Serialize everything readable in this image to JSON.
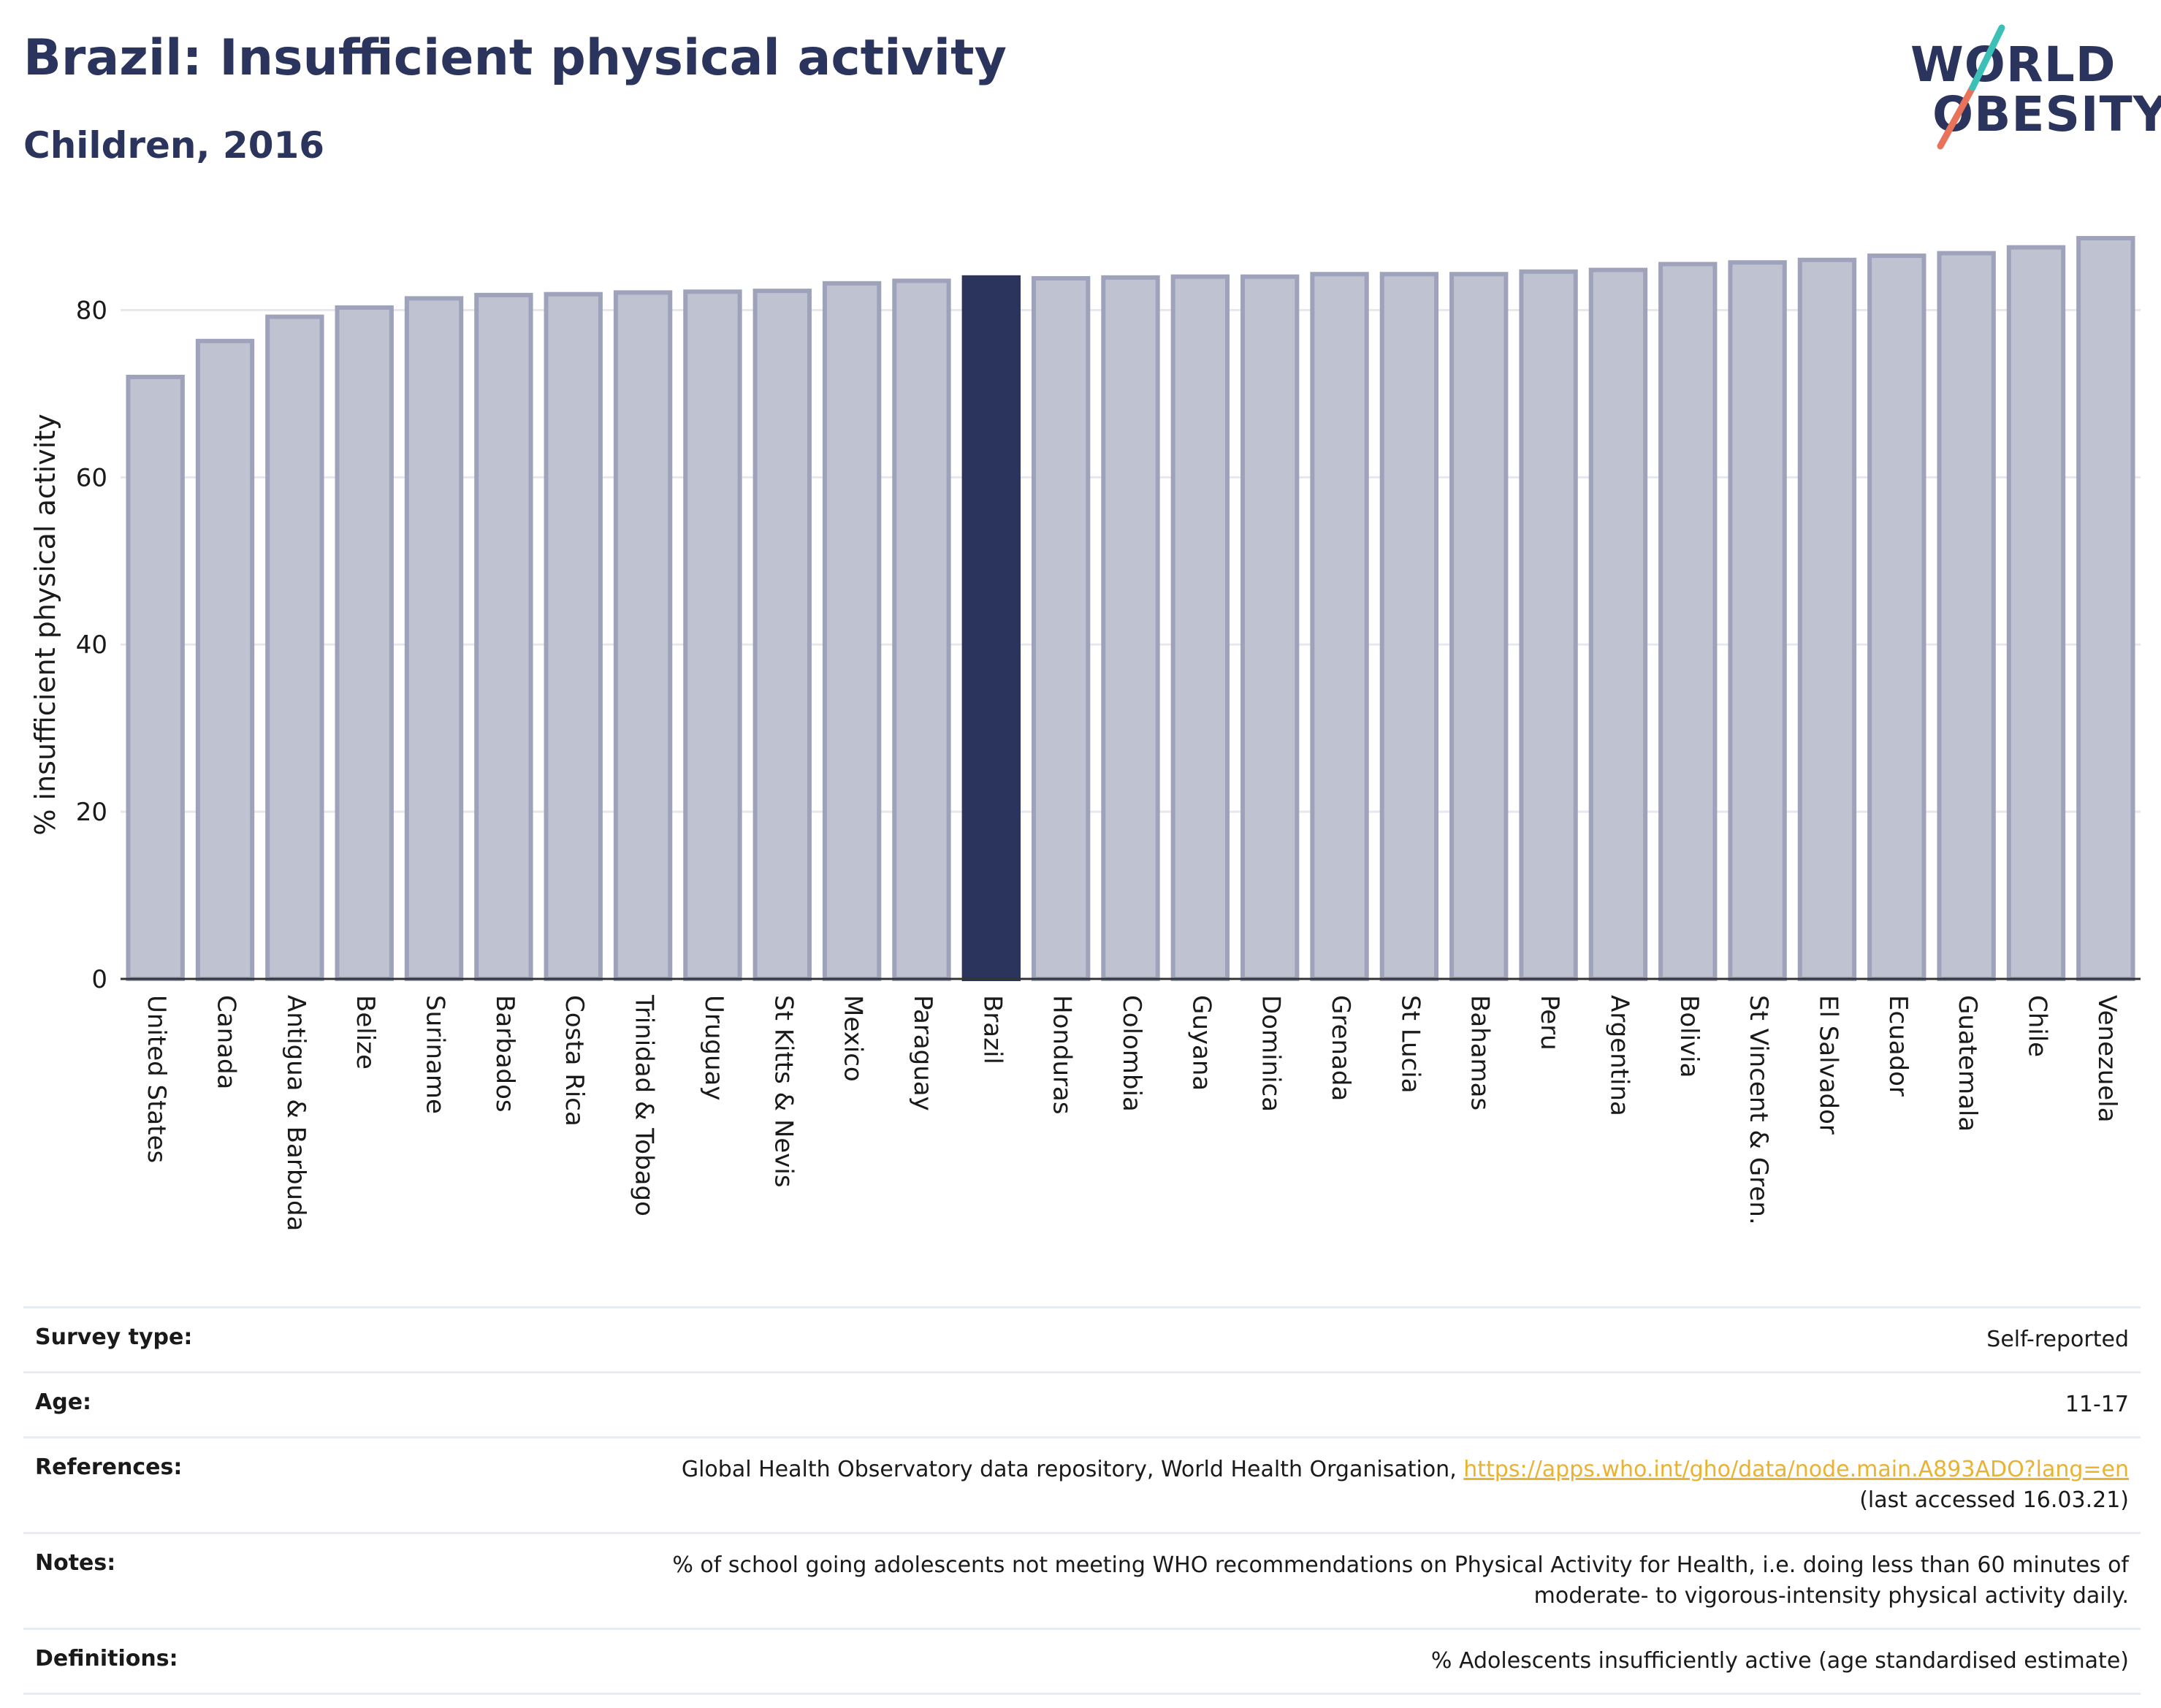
{
  "header": {
    "title": "Brazil: Insufficient physical activity",
    "subtitle": "Children, 2016"
  },
  "logo": {
    "line1": "WORLD",
    "line2": "OBESITY"
  },
  "chart_data": {
    "type": "bar",
    "title": "Brazil: Insufficient physical activity",
    "subtitle": "Children, 2016",
    "xlabel": "",
    "ylabel": "% insufficient physical activity",
    "ylim": [
      0,
      90
    ],
    "yticks": [
      0,
      20,
      40,
      60,
      80
    ],
    "grid": true,
    "highlight": "Brazil",
    "colors": {
      "bar": "#bfc2d0",
      "bar_edge": "#9ea3bb",
      "highlight": "#2a345c",
      "grid": "#e6e8ee"
    },
    "categories": [
      "United States",
      "Canada",
      "Antigua & Barbuda",
      "Belize",
      "Suriname",
      "Barbados",
      "Costa Rica",
      "Trinidad & Tobago",
      "Uruguay",
      "St Kitts & Nevis",
      "Mexico",
      "Paraguay",
      "Brazil",
      "Honduras",
      "Colombia",
      "Guyana",
      "Dominica",
      "Grenada",
      "St Lucia",
      "Bahamas",
      "Peru",
      "Argentina",
      "Bolivia",
      "St Vincent & Gren.",
      "El Salvador",
      "Ecuador",
      "Guatemala",
      "Chile",
      "Venezuela"
    ],
    "values": [
      72.0,
      76.3,
      79.2,
      80.3,
      81.4,
      81.8,
      81.9,
      82.1,
      82.2,
      82.3,
      83.2,
      83.5,
      83.9,
      83.8,
      83.9,
      84.0,
      84.0,
      84.3,
      84.3,
      84.3,
      84.6,
      84.8,
      85.5,
      85.7,
      86.0,
      86.5,
      86.8,
      87.5,
      88.6
    ]
  },
  "info": {
    "survey_type_label": "Survey type:",
    "survey_type": "Self-reported",
    "age_label": "Age:",
    "age": "11-17",
    "references_label": "References:",
    "references_text": "Global Health Observatory data repository, World Health Organisation, ",
    "references_link": "https://apps.who.int/gho/data/node.main.A893ADO?lang=en",
    "references_accessed": "(last accessed 16.03.21)",
    "notes_label": "Notes:",
    "notes_line1": "% of school going adolescents not meeting WHO recommendations on Physical Activity for Health, i.e. doing less than 60 minutes of",
    "notes_line2": "moderate- to vigorous-intensity physical activity daily.",
    "definitions_label": "Definitions:",
    "definitions": "% Adolescents insufficiently active (age standardised estimate)"
  }
}
